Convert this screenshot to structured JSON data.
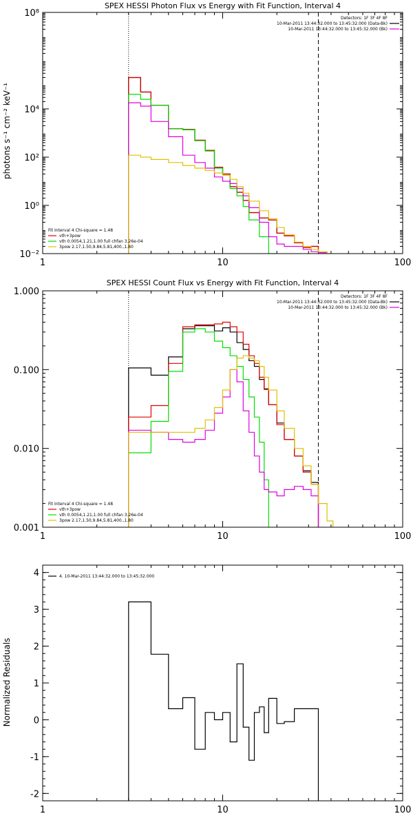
{
  "chart_data": [
    {
      "type": "line",
      "title": "SPEX HESSI Photon Flux vs Energy with Fit Function, Interval 4",
      "xlabel": "",
      "ylabel": "photons s⁻¹ cm⁻² keV⁻¹",
      "xscale": "log",
      "yscale": "log",
      "xlim": [
        1,
        100
      ],
      "ylim": [
        0.01,
        100000000
      ],
      "x_ticks": [
        {
          "value": 1,
          "label": "1"
        },
        {
          "value": 10,
          "label": "10"
        },
        {
          "value": 100,
          "label": "100"
        }
      ],
      "y_ticks": [
        {
          "value": 0.01,
          "label": "10⁻²"
        },
        {
          "value": 1,
          "label": "10⁰"
        },
        {
          "value": 100,
          "label": "10²"
        },
        {
          "value": 10000,
          "label": "10⁴"
        },
        {
          "value": 100000000,
          "label": "10⁸"
        }
      ],
      "vlines": [
        {
          "x": 3,
          "style": "dotted"
        },
        {
          "x": 34,
          "style": "dashed"
        }
      ],
      "legend_right": {
        "placement": "top-right",
        "entries": [
          {
            "text": "Detectors: 1F 3F 4F 8F",
            "color": ""
          },
          {
            "text": "10-Mar-2011 13:44:32.000 to 13:45:32.000 (Data-Bk)",
            "color": "#000000"
          },
          {
            "text": "10-Mar-2011 13:44:32.000 to 13:45:32.000 (Bk)",
            "color": "#e000e0"
          }
        ]
      },
      "legend_left": {
        "placement": "bottom-left",
        "entries": [
          {
            "text": "Fit Interval 4   Chi-square = 1.48",
            "color": ""
          },
          {
            "text": "vth+3pow",
            "color": "#e00000"
          },
          {
            "text": "vth 0.0054,1.21,1.00  full chfan 3.26e-04",
            "color": "#00dd00"
          },
          {
            "text": "3pow 2.17,1.50,9.84,5.81,400.,1.80",
            "color": "#e0c000"
          }
        ]
      },
      "series": [
        {
          "color": "#000000",
          "edges": [
            3,
            3.5,
            4,
            5,
            6,
            7,
            8,
            9,
            10,
            11,
            12,
            13,
            14,
            16,
            18,
            20,
            22,
            25,
            28,
            31,
            34
          ],
          "values": [
            200000,
            50000,
            14000,
            1500,
            1400,
            500,
            190,
            38,
            20,
            6,
            3.5,
            1.6,
            0.5,
            0.3,
            0.25,
            0.07,
            0.055,
            0.028,
            0.018,
            0.02
          ]
        },
        {
          "color": "#e00000",
          "edges": [
            3,
            3.5,
            4,
            5,
            6,
            7,
            8,
            9,
            10,
            11,
            12,
            13,
            14,
            16,
            18,
            20,
            22,
            25,
            28,
            31,
            34
          ],
          "values": [
            200000,
            50000,
            14000,
            1500,
            1400,
            500,
            190,
            38,
            20,
            6,
            3.5,
            1.6,
            0.5,
            0.3,
            0.25,
            0.07,
            0.055,
            0.028,
            0.018,
            0.02
          ]
        },
        {
          "color": "#00dd00",
          "edges": [
            3,
            3.5,
            4,
            5,
            6,
            7,
            8,
            9,
            10,
            11,
            12,
            13,
            14,
            16,
            18,
            20
          ],
          "values": [
            40000,
            25000,
            14000,
            1500,
            1350,
            480,
            180,
            35,
            18,
            5,
            2.5,
            0.9,
            0.25,
            0.05,
            0.01
          ]
        },
        {
          "color": "#e000e0",
          "edges": [
            3,
            3.5,
            4,
            5,
            6,
            7,
            8,
            9,
            10,
            11,
            12,
            13,
            14,
            16,
            18,
            20,
            22,
            25,
            28,
            31,
            34,
            38
          ],
          "values": [
            18000,
            13000,
            3000,
            700,
            120,
            60,
            35,
            15,
            10,
            8,
            5,
            2.5,
            0.8,
            0.2,
            0.05,
            0.025,
            0.02,
            0.02,
            0.015,
            0.012,
            0.011
          ]
        },
        {
          "color": "#e0c000",
          "edges": [
            3,
            3.5,
            4,
            5,
            6,
            7,
            8,
            9,
            10,
            11,
            12,
            13,
            14,
            16,
            18,
            20,
            22,
            25,
            28,
            31,
            34,
            38,
            40
          ],
          "values": [
            120,
            100,
            80,
            60,
            45,
            35,
            28,
            22,
            18,
            12,
            6,
            3.2,
            1.5,
            0.6,
            0.28,
            0.12,
            0.06,
            0.03,
            0.02,
            0.015,
            0.012,
            0.01
          ]
        }
      ]
    },
    {
      "type": "line",
      "title": "SPEX HESSI Count Flux vs Energy with Fit Function, Interval 4",
      "xlabel": "",
      "ylabel": "",
      "xscale": "log",
      "yscale": "log",
      "xlim": [
        1,
        100
      ],
      "ylim": [
        0.001,
        1
      ],
      "x_ticks": [
        {
          "value": 1,
          "label": "1"
        },
        {
          "value": 10,
          "label": "10"
        },
        {
          "value": 100,
          "label": "100"
        }
      ],
      "y_ticks": [
        {
          "value": 0.001,
          "label": "0.001"
        },
        {
          "value": 0.01,
          "label": "0.010"
        },
        {
          "value": 0.1,
          "label": "0.100"
        },
        {
          "value": 1,
          "label": "1.000"
        }
      ],
      "vlines": [
        {
          "x": 3,
          "style": "dotted"
        },
        {
          "x": 34,
          "style": "dashed"
        }
      ],
      "legend_right": {
        "placement": "top-right",
        "entries": [
          {
            "text": "Detectors: 1F 3F 4F 8F",
            "color": ""
          },
          {
            "text": "10-Mar-2011 13:44:32.000 to 13:45:32.000 (Data-Bk)",
            "color": "#000000"
          },
          {
            "text": "10-Mar-2011 13:44:32.000 to 13:45:32.000 (Bk)",
            "color": "#e000e0"
          }
        ]
      },
      "legend_left": {
        "placement": "bottom-left",
        "entries": [
          {
            "text": "Fit Interval 4   Chi-square = 1.48",
            "color": ""
          },
          {
            "text": "vth+3pow",
            "color": "#e00000"
          },
          {
            "text": "vth 0.0054,1.21,1.00  full chfan 3.26e-04",
            "color": "#00dd00"
          },
          {
            "text": "3pow 2.17,1.50,9.84,5.81,400.,1.80",
            "color": "#e0c000"
          }
        ]
      },
      "series": [
        {
          "color": "#000000",
          "edges": [
            3,
            4,
            5,
            6,
            7,
            8,
            9,
            10,
            11,
            12,
            13,
            14,
            15,
            16,
            17,
            18,
            20,
            22,
            25,
            28,
            31,
            34
          ],
          "values": [
            0.105,
            0.085,
            0.145,
            0.33,
            0.36,
            0.36,
            0.31,
            0.34,
            0.3,
            0.22,
            0.18,
            0.13,
            0.11,
            0.075,
            0.057,
            0.036,
            0.021,
            0.013,
            0.008,
            0.0052,
            0.0037
          ]
        },
        {
          "color": "#e00000",
          "edges": [
            3,
            4,
            5,
            6,
            7,
            8,
            9,
            10,
            11,
            12,
            13,
            14,
            15,
            16,
            17,
            18,
            20,
            22,
            25,
            28,
            31,
            34
          ],
          "values": [
            0.025,
            0.035,
            0.12,
            0.35,
            0.37,
            0.37,
            0.38,
            0.4,
            0.35,
            0.3,
            0.21,
            0.15,
            0.12,
            0.08,
            0.056,
            0.036,
            0.02,
            0.013,
            0.008,
            0.005,
            0.0035
          ]
        },
        {
          "color": "#00dd00",
          "edges": [
            3,
            4,
            5,
            6,
            7,
            8,
            9,
            10,
            11,
            12,
            13,
            14,
            15,
            16,
            17,
            18
          ],
          "values": [
            0.0088,
            0.022,
            0.095,
            0.3,
            0.33,
            0.3,
            0.23,
            0.19,
            0.15,
            0.11,
            0.075,
            0.045,
            0.025,
            0.012,
            0.004
          ]
        },
        {
          "color": "#e000e0",
          "edges": [
            3,
            4,
            5,
            6,
            7,
            8,
            9,
            10,
            11,
            12,
            13,
            14,
            15,
            16,
            17,
            18,
            20,
            22,
            25,
            28,
            31,
            34
          ],
          "values": [
            0.017,
            0.016,
            0.013,
            0.012,
            0.013,
            0.017,
            0.028,
            0.045,
            0.1,
            0.07,
            0.03,
            0.016,
            0.008,
            0.005,
            0.003,
            0.0028,
            0.0025,
            0.003,
            0.0033,
            0.003,
            0.0025
          ]
        },
        {
          "color": "#e0c000",
          "edges": [
            3,
            4,
            5,
            6,
            7,
            8,
            9,
            10,
            11,
            12,
            13,
            14,
            15,
            16,
            17,
            18,
            20,
            22,
            25,
            28,
            31,
            34,
            38,
            41
          ],
          "values": [
            0.016,
            0.016,
            0.016,
            0.016,
            0.018,
            0.023,
            0.033,
            0.055,
            0.1,
            0.14,
            0.15,
            0.14,
            0.13,
            0.11,
            0.08,
            0.055,
            0.03,
            0.018,
            0.01,
            0.006,
            0.0035,
            0.002,
            0.0012
          ]
        }
      ]
    },
    {
      "type": "line",
      "title": "",
      "xlabel": "",
      "ylabel": "Normalized Residuals",
      "xscale": "log",
      "yscale": "linear",
      "xlim": [
        1,
        100
      ],
      "ylim": [
        -2.2,
        4.2
      ],
      "x_ticks": [
        {
          "value": 1,
          "label": "1"
        },
        {
          "value": 10,
          "label": "10"
        },
        {
          "value": 100,
          "label": "100"
        }
      ],
      "y_ticks": [
        {
          "value": -2,
          "label": "-2"
        },
        {
          "value": -1,
          "label": "-1"
        },
        {
          "value": 0,
          "label": "0"
        },
        {
          "value": 1,
          "label": "1"
        },
        {
          "value": 2,
          "label": "2"
        },
        {
          "value": 3,
          "label": "3"
        },
        {
          "value": 4,
          "label": "4"
        }
      ],
      "legend_left": {
        "placement": "top-left",
        "entries": [
          {
            "text": "4. 10-Mar-2011 13:44:32.000 to 13:45:32.000",
            "color": "#000000"
          }
        ]
      },
      "series": [
        {
          "color": "#000000",
          "edges": [
            3,
            4,
            5,
            6,
            7,
            8,
            9,
            10,
            11,
            12,
            13,
            14,
            15,
            16,
            17,
            18,
            20,
            22,
            25,
            28,
            31,
            34
          ],
          "values": [
            3.2,
            1.78,
            0.3,
            0.6,
            -0.8,
            0.2,
            0.0,
            0.2,
            -0.6,
            1.52,
            -0.2,
            -1.1,
            0.2,
            0.35,
            -0.35,
            0.58,
            -0.1,
            -0.05,
            0.3,
            0.3,
            0.3
          ]
        }
      ]
    }
  ]
}
